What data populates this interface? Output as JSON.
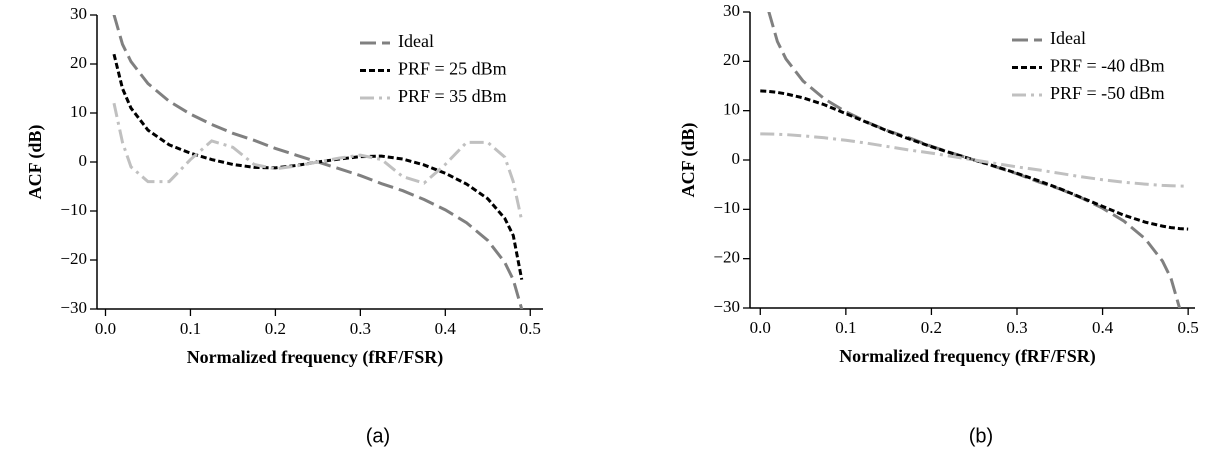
{
  "chart_data": [
    {
      "type": "line",
      "caption": "(a)",
      "xlabel": "Normalized frequency (fRF/FSR)",
      "ylabel": "ACF (dB)",
      "x": [
        0.01,
        0.02,
        0.03,
        0.05,
        0.075,
        0.1,
        0.125,
        0.15,
        0.175,
        0.2,
        0.225,
        0.25,
        0.275,
        0.3,
        0.325,
        0.35,
        0.375,
        0.4,
        0.425,
        0.45,
        0.47,
        0.48,
        0.49
      ],
      "series": [
        {
          "name": "Ideal",
          "color": "#808080",
          "dash": "long",
          "values": [
            30.05,
            24.02,
            20.49,
            16.01,
            12.39,
            9.77,
            7.66,
            5.86,
            4.42,
            2.77,
            1.37,
            0,
            -1.37,
            -2.77,
            -4.42,
            -5.86,
            -7.66,
            -9.77,
            -12.39,
            -16.01,
            -20.49,
            -24.02,
            -30.05
          ]
        },
        {
          "name": "PRF = 25 dBm",
          "color": "#000000",
          "dash": "short",
          "values": [
            22,
            15,
            11,
            6.5,
            3.5,
            1.8,
            0.5,
            -0.5,
            -1.1,
            -1.2,
            -0.7,
            0,
            0.6,
            1.1,
            1.2,
            0.6,
            -0.6,
            -2.3,
            -4.5,
            -7.5,
            -11.5,
            -15,
            -24
          ]
        },
        {
          "name": "PRF = 35 dBm",
          "color": "#c0c0c0",
          "dash": "dashdot",
          "values": [
            12,
            4,
            -1,
            -4,
            -4,
            0.5,
            4.3,
            3,
            -0.5,
            -1.4,
            -0.8,
            0,
            0.8,
            1.4,
            0.5,
            -3,
            -4.3,
            -0.5,
            4,
            4,
            1,
            -4,
            -12
          ]
        }
      ],
      "xlim": [
        -0.01,
        0.515
      ],
      "ylim": [
        -30,
        30
      ],
      "xticks": [
        {
          "value": 0,
          "label": "0.0"
        },
        0.1,
        0.2,
        0.3,
        0.4,
        0.5
      ],
      "yticks": [
        {
          "value": -30,
          "label": "−30"
        },
        {
          "value": -20,
          "label": "−20"
        },
        {
          "value": -10,
          "label": "−10"
        },
        0,
        10,
        20,
        30
      ],
      "legend": "upper right"
    },
    {
      "type": "line",
      "caption": "(b)",
      "xlabel": "Normalized frequency (fRF/FSR)",
      "ylabel": "ACF (dB)",
      "x": [
        0,
        0.01,
        0.02,
        0.03,
        0.05,
        0.075,
        0.1,
        0.125,
        0.15,
        0.175,
        0.2,
        0.225,
        0.25,
        0.275,
        0.3,
        0.325,
        0.35,
        0.375,
        0.4,
        0.425,
        0.45,
        0.47,
        0.48,
        0.49,
        0.5
      ],
      "series": [
        {
          "name": "Ideal",
          "color": "#808080",
          "dash": "long",
          "values": [
            null,
            30.05,
            24.02,
            20.49,
            16.01,
            12.39,
            9.77,
            7.66,
            5.86,
            4.42,
            2.77,
            1.37,
            0,
            -1.37,
            -2.77,
            -4.42,
            -5.86,
            -7.66,
            -9.77,
            -12.39,
            -16.01,
            -20.49,
            -24.02,
            -30.05,
            null
          ]
        },
        {
          "name": "PRF = -40 dBm",
          "color": "#000000",
          "dash": "short",
          "values": [
            14,
            13.9,
            13.7,
            13.4,
            12.6,
            11.2,
            9.4,
            7.6,
            5.8,
            4.2,
            2.7,
            1.3,
            0,
            -1.3,
            -2.7,
            -4.2,
            -5.8,
            -7.6,
            -9.4,
            -11.2,
            -12.6,
            -13.4,
            -13.7,
            -13.9,
            -14
          ]
        },
        {
          "name": "PRF = -50 dBm",
          "color": "#c0c0c0",
          "dash": "dashdot",
          "values": [
            5.3,
            5.28,
            5.22,
            5.15,
            4.9,
            4.5,
            4.0,
            3.4,
            2.7,
            2.0,
            1.4,
            0.7,
            0,
            -0.7,
            -1.4,
            -2.0,
            -2.7,
            -3.4,
            -4.0,
            -4.5,
            -4.9,
            -5.15,
            -5.22,
            -5.28,
            -5.3
          ]
        }
      ],
      "xlim": [
        -0.012,
        0.508
      ],
      "ylim": [
        -30,
        30
      ],
      "xticks": [
        {
          "value": 0,
          "label": "0.0"
        },
        0.1,
        0.2,
        0.3,
        0.4,
        0.5
      ],
      "yticks": [
        {
          "value": -30,
          "label": "−30"
        },
        {
          "value": -20,
          "label": "−20"
        },
        {
          "value": -10,
          "label": "−10"
        },
        0,
        10,
        20,
        30
      ],
      "legend": "upper right"
    }
  ]
}
